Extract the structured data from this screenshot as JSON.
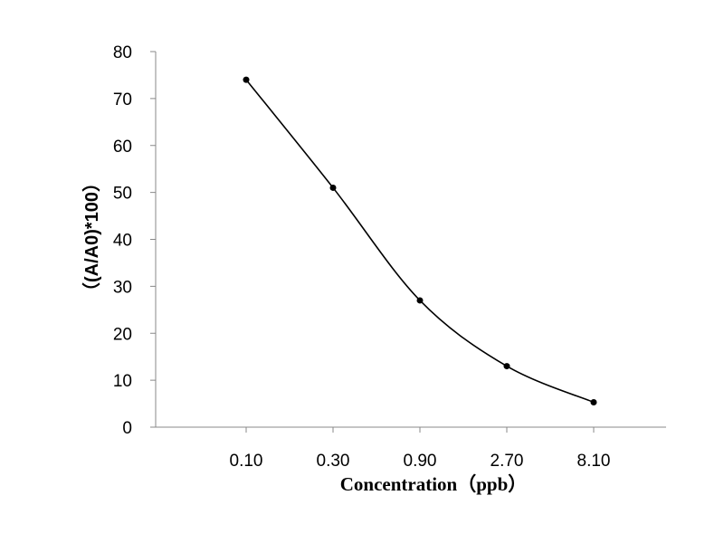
{
  "chart_data": {
    "type": "line",
    "title": "",
    "xlabel": "Concentration（ppb）",
    "ylabel": "（(A/A0)*100）",
    "categories": [
      "0.10",
      "0.30",
      "0.90",
      "2.70",
      "8.10"
    ],
    "values": [
      74,
      51,
      27,
      13,
      5.3
    ],
    "ylim": [
      0,
      80
    ],
    "yticks": [
      "0",
      "10",
      "20",
      "30",
      "40",
      "50",
      "60",
      "70",
      "80"
    ],
    "grid": false,
    "smooth": true,
    "line_color": "#000000",
    "marker_color": "#000000"
  }
}
